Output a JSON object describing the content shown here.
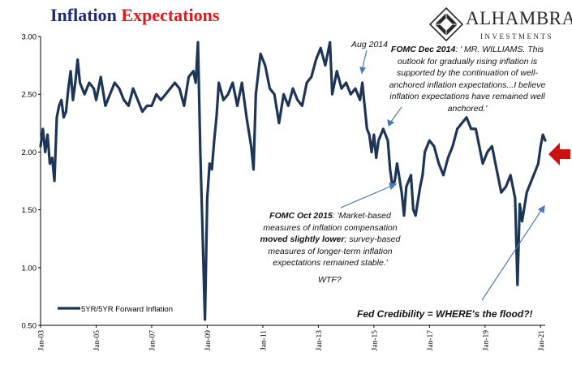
{
  "header": {
    "title_part1": "Inflation",
    "title_part2": "Expectations"
  },
  "logo": {
    "word": "ALHAMBRA",
    "sub": "INVESTMENTS"
  },
  "annotations": {
    "aug2014": "Aug 2014",
    "dec2014_head": "FOMC Dec 2014",
    "dec2014_body": ": ' MR. WILLIAMS. This outlook for gradually rising inflation is supported by the continuation of well-anchored inflation expectations...I believe inflation expectations have remained well anchored.'",
    "oct2015_head": "FOMC Oct 2015",
    "oct2015_body1": ": 'Market-based measures of inflation compensation ",
    "oct2015_bold": "moved slightly lower",
    "oct2015_body2": "; survey-based measures of longer-term inflation expectations remained stable.'",
    "wtf": "WTF?",
    "credibility": "Fed Credibility = WHERE's the flood?!"
  },
  "colors": {
    "line": "#1d3557",
    "title_blue": "#1f2a78",
    "title_red": "#e0191e",
    "marker": "#cc1111",
    "arrow": "#4a7ab5"
  },
  "chart_data": {
    "type": "line",
    "title": "Inflation Expectations",
    "ylim": [
      0.5,
      3.0
    ],
    "yticks": [
      "3.00",
      "2.50",
      "2.00",
      "1.50",
      "1.00",
      "0.50"
    ],
    "xlim": [
      "2003-01",
      "2021-03"
    ],
    "xticks": [
      "Jan-03",
      "Jan-05",
      "Jan-07",
      "Jan-09",
      "Jan-11",
      "Jan-13",
      "Jan-15",
      "Jan-17",
      "Jan-19",
      "Jan-21"
    ],
    "grid": false,
    "legend_position": "bottom-left",
    "series": [
      {
        "name": "5YR/5YR Forward Inflation",
        "points": [
          [
            "2003-01",
            2.05
          ],
          [
            "2003-02",
            2.2
          ],
          [
            "2003-03",
            2.0
          ],
          [
            "2003-04",
            2.15
          ],
          [
            "2003-05",
            1.9
          ],
          [
            "2003-06",
            1.95
          ],
          [
            "2003-07",
            1.75
          ],
          [
            "2003-08",
            2.3
          ],
          [
            "2003-09",
            2.4
          ],
          [
            "2003-10",
            2.45
          ],
          [
            "2003-11",
            2.3
          ],
          [
            "2003-12",
            2.35
          ],
          [
            "2004-01",
            2.55
          ],
          [
            "2004-02",
            2.7
          ],
          [
            "2004-03",
            2.45
          ],
          [
            "2004-04",
            2.6
          ],
          [
            "2004-05",
            2.8
          ],
          [
            "2004-06",
            2.6
          ],
          [
            "2004-07",
            2.55
          ],
          [
            "2004-08",
            2.5
          ],
          [
            "2004-10",
            2.6
          ],
          [
            "2004-12",
            2.55
          ],
          [
            "2005-01",
            2.45
          ],
          [
            "2005-03",
            2.65
          ],
          [
            "2005-05",
            2.4
          ],
          [
            "2005-07",
            2.5
          ],
          [
            "2005-09",
            2.6
          ],
          [
            "2005-11",
            2.55
          ],
          [
            "2006-01",
            2.45
          ],
          [
            "2006-03",
            2.4
          ],
          [
            "2006-05",
            2.55
          ],
          [
            "2006-07",
            2.45
          ],
          [
            "2006-09",
            2.35
          ],
          [
            "2006-11",
            2.4
          ],
          [
            "2007-01",
            2.4
          ],
          [
            "2007-03",
            2.5
          ],
          [
            "2007-05",
            2.45
          ],
          [
            "2007-07",
            2.5
          ],
          [
            "2007-09",
            2.55
          ],
          [
            "2007-11",
            2.6
          ],
          [
            "2008-01",
            2.55
          ],
          [
            "2008-03",
            2.4
          ],
          [
            "2008-05",
            2.65
          ],
          [
            "2008-07",
            2.7
          ],
          [
            "2008-08",
            2.6
          ],
          [
            "2008-09",
            2.95
          ],
          [
            "2008-10",
            2.0
          ],
          [
            "2008-11",
            1.3
          ],
          [
            "2008-12",
            0.55
          ],
          [
            "2009-01",
            1.6
          ],
          [
            "2009-02",
            1.9
          ],
          [
            "2009-03",
            1.85
          ],
          [
            "2009-04",
            2.1
          ],
          [
            "2009-05",
            2.3
          ],
          [
            "2009-06",
            2.6
          ],
          [
            "2009-08",
            2.45
          ],
          [
            "2009-10",
            2.5
          ],
          [
            "2009-12",
            2.6
          ],
          [
            "2010-02",
            2.4
          ],
          [
            "2010-04",
            2.6
          ],
          [
            "2010-06",
            2.3
          ],
          [
            "2010-08",
            2.05
          ],
          [
            "2010-09",
            1.85
          ],
          [
            "2010-10",
            2.5
          ],
          [
            "2010-12",
            2.85
          ],
          [
            "2011-02",
            2.75
          ],
          [
            "2011-04",
            2.55
          ],
          [
            "2011-06",
            2.5
          ],
          [
            "2011-08",
            2.25
          ],
          [
            "2011-10",
            2.5
          ],
          [
            "2011-12",
            2.4
          ],
          [
            "2012-02",
            2.55
          ],
          [
            "2012-04",
            2.45
          ],
          [
            "2012-06",
            2.4
          ],
          [
            "2012-08",
            2.6
          ],
          [
            "2012-10",
            2.65
          ],
          [
            "2012-12",
            2.8
          ],
          [
            "2013-02",
            2.9
          ],
          [
            "2013-04",
            2.75
          ],
          [
            "2013-06",
            2.95
          ],
          [
            "2013-07",
            2.5
          ],
          [
            "2013-09",
            2.7
          ],
          [
            "2013-11",
            2.55
          ],
          [
            "2014-01",
            2.6
          ],
          [
            "2014-03",
            2.5
          ],
          [
            "2014-05",
            2.55
          ],
          [
            "2014-07",
            2.45
          ],
          [
            "2014-08",
            2.6
          ],
          [
            "2014-09",
            2.4
          ],
          [
            "2014-10",
            2.2
          ],
          [
            "2014-11",
            2.15
          ],
          [
            "2014-12",
            2.0
          ],
          [
            "2015-01",
            2.15
          ],
          [
            "2015-02",
            1.95
          ],
          [
            "2015-03",
            2.1
          ],
          [
            "2015-05",
            2.2
          ],
          [
            "2015-07",
            2.1
          ],
          [
            "2015-08",
            1.85
          ],
          [
            "2015-09",
            1.7
          ],
          [
            "2015-10",
            1.75
          ],
          [
            "2015-11",
            1.9
          ],
          [
            "2016-01",
            1.65
          ],
          [
            "2016-02",
            1.45
          ],
          [
            "2016-03",
            1.7
          ],
          [
            "2016-05",
            1.8
          ],
          [
            "2016-06",
            1.5
          ],
          [
            "2016-07",
            1.45
          ],
          [
            "2016-09",
            1.7
          ],
          [
            "2016-10",
            1.8
          ],
          [
            "2016-11",
            2.0
          ],
          [
            "2017-01",
            2.1
          ],
          [
            "2017-03",
            2.05
          ],
          [
            "2017-05",
            1.9
          ],
          [
            "2017-07",
            1.8
          ],
          [
            "2017-09",
            1.95
          ],
          [
            "2017-11",
            2.05
          ],
          [
            "2018-01",
            2.2
          ],
          [
            "2018-03",
            2.25
          ],
          [
            "2018-05",
            2.3
          ],
          [
            "2018-07",
            2.2
          ],
          [
            "2018-09",
            2.2
          ],
          [
            "2018-10",
            2.1
          ],
          [
            "2018-12",
            1.9
          ],
          [
            "2019-02",
            2.0
          ],
          [
            "2019-04",
            2.05
          ],
          [
            "2019-06",
            1.85
          ],
          [
            "2019-08",
            1.65
          ],
          [
            "2019-10",
            1.7
          ],
          [
            "2019-12",
            1.8
          ],
          [
            "2020-02",
            1.6
          ],
          [
            "2020-03",
            0.85
          ],
          [
            "2020-04",
            1.55
          ],
          [
            "2020-05",
            1.4
          ],
          [
            "2020-07",
            1.65
          ],
          [
            "2020-09",
            1.75
          ],
          [
            "2020-11",
            1.85
          ],
          [
            "2020-12",
            1.9
          ],
          [
            "2021-01",
            2.05
          ],
          [
            "2021-02",
            2.15
          ],
          [
            "2021-03",
            2.1
          ]
        ]
      }
    ]
  }
}
